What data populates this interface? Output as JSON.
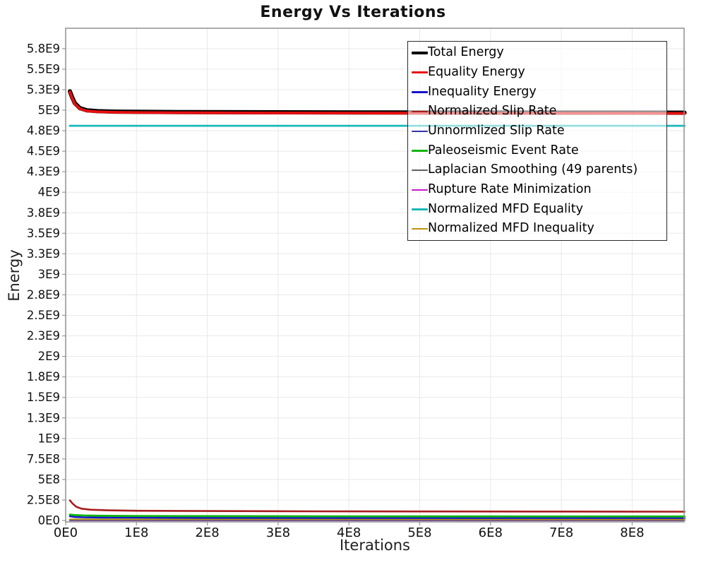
{
  "chart_data": {
    "type": "line",
    "title": "Energy Vs Iterations",
    "xlabel": "Iterations",
    "ylabel": "Energy",
    "xlim": [
      0,
      874000000.0
    ],
    "ylim": [
      0,
      6000000000.0
    ],
    "grid": true,
    "legend_position": "top-right-inside",
    "grid_color": "#e9e9e9",
    "border_color": "#909090",
    "tick_color": "#999999",
    "x_ticks": [
      {
        "value": 0,
        "label": "0E0"
      },
      {
        "value": 100000000.0,
        "label": "1E8"
      },
      {
        "value": 200000000.0,
        "label": "2E8"
      },
      {
        "value": 300000000.0,
        "label": "3E8"
      },
      {
        "value": 400000000.0,
        "label": "4E8"
      },
      {
        "value": 500000000.0,
        "label": "5E8"
      },
      {
        "value": 600000000.0,
        "label": "6E8"
      },
      {
        "value": 700000000.0,
        "label": "7E8"
      },
      {
        "value": 800000000.0,
        "label": "8E8"
      }
    ],
    "y_ticks": [
      {
        "value": 0,
        "label": "0E0"
      },
      {
        "value": 250000000.0,
        "label": "2.5E8"
      },
      {
        "value": 500000000.0,
        "label": "5E8"
      },
      {
        "value": 750000000.0,
        "label": "7.5E8"
      },
      {
        "value": 1000000000.0,
        "label": "1E9"
      },
      {
        "value": 1250000000.0,
        "label": "1.3E9"
      },
      {
        "value": 1500000000.0,
        "label": "1.5E9"
      },
      {
        "value": 1750000000.0,
        "label": "1.8E9"
      },
      {
        "value": 2000000000.0,
        "label": "2E9"
      },
      {
        "value": 2250000000.0,
        "label": "2.3E9"
      },
      {
        "value": 2500000000.0,
        "label": "2.5E9"
      },
      {
        "value": 2750000000.0,
        "label": "2.8E9"
      },
      {
        "value": 3000000000.0,
        "label": "3E9"
      },
      {
        "value": 3250000000.0,
        "label": "3.3E9"
      },
      {
        "value": 3500000000.0,
        "label": "3.5E9"
      },
      {
        "value": 3750000000.0,
        "label": "3.8E9"
      },
      {
        "value": 4000000000.0,
        "label": "4E9"
      },
      {
        "value": 4250000000.0,
        "label": "4.3E9"
      },
      {
        "value": 4500000000.0,
        "label": "4.5E9"
      },
      {
        "value": 4750000000.0,
        "label": "4.8E9"
      },
      {
        "value": 5000000000.0,
        "label": "5E9"
      },
      {
        "value": 5250000000.0,
        "label": "5.3E9"
      },
      {
        "value": 5500000000.0,
        "label": "5.5E9"
      },
      {
        "value": 5750000000.0,
        "label": "5.8E9"
      }
    ],
    "series": [
      {
        "name": "Total Energy",
        "color": "#000000",
        "width": 6,
        "points": [
          [
            6000000.0,
            5230000000.0
          ],
          [
            9000000.0,
            5160000000.0
          ],
          [
            13000000.0,
            5085000000.0
          ],
          [
            20000000.0,
            5025000000.0
          ],
          [
            30000000.0,
            4998000000.0
          ],
          [
            45000000.0,
            4988000000.0
          ],
          [
            70000000.0,
            4982000000.0
          ],
          [
            110000000.0,
            4979000000.0
          ],
          [
            180000000.0,
            4976000000.0
          ],
          [
            300000000.0,
            4974000000.0
          ],
          [
            450000000.0,
            4972000000.0
          ],
          [
            600000000.0,
            4971000000.0
          ],
          [
            750000000.0,
            4970000000.0
          ],
          [
            874000000.0,
            4969000000.0
          ]
        ]
      },
      {
        "name": "Equality Energy",
        "color": "#e81010",
        "width": 3.8,
        "points": [
          [
            6000000.0,
            5222000000.0
          ],
          [
            9000000.0,
            5152000000.0
          ],
          [
            13000000.0,
            5077000000.0
          ],
          [
            20000000.0,
            5017000000.0
          ],
          [
            30000000.0,
            4990000000.0
          ],
          [
            45000000.0,
            4980000000.0
          ],
          [
            70000000.0,
            4974000000.0
          ],
          [
            110000000.0,
            4971000000.0
          ],
          [
            180000000.0,
            4968000000.0
          ],
          [
            300000000.0,
            4966000000.0
          ],
          [
            450000000.0,
            4964000000.0
          ],
          [
            600000000.0,
            4963000000.0
          ],
          [
            750000000.0,
            4962000000.0
          ],
          [
            874000000.0,
            4961000000.0
          ]
        ]
      },
      {
        "name": "Inequality Energy",
        "color": "#1414cc",
        "width": 2.6,
        "points": [
          [
            6000000.0,
            52000000.0
          ],
          [
            12000000.0,
            44000000.0
          ],
          [
            25000000.0,
            39000000.0
          ],
          [
            50000000.0,
            36000000.0
          ],
          [
            100000000.0,
            34000000.0
          ],
          [
            200000000.0,
            32000000.0
          ],
          [
            400000000.0,
            31000000.0
          ],
          [
            600000000.0,
            30000000.0
          ],
          [
            874000000.0,
            30000000.0
          ]
        ]
      },
      {
        "name": "Normalized Slip Rate",
        "color": "#a81c1c",
        "width": 2.6,
        "points": [
          [
            6000000.0,
            245000000.0
          ],
          [
            10000000.0,
            205000000.0
          ],
          [
            15000000.0,
            168000000.0
          ],
          [
            22000000.0,
            145000000.0
          ],
          [
            35000000.0,
            132000000.0
          ],
          [
            60000000.0,
            124000000.0
          ],
          [
            100000000.0,
            119000000.0
          ],
          [
            200000000.0,
            115000000.0
          ],
          [
            350000000.0,
            112000000.0
          ],
          [
            500000000.0,
            110000000.0
          ],
          [
            700000000.0,
            109000000.0
          ],
          [
            874000000.0,
            108000000.0
          ]
        ]
      },
      {
        "name": "Unnormlized Slip Rate",
        "color": "#3434a8",
        "width": 2.2,
        "points": [
          [
            6000000.0,
            6000000.0
          ],
          [
            874000000.0,
            6000000.0
          ]
        ]
      },
      {
        "name": "Paleoseismic Event Rate",
        "color": "#10b410",
        "width": 2.8,
        "points": [
          [
            6000000.0,
            72000000.0
          ],
          [
            12000000.0,
            66000000.0
          ],
          [
            25000000.0,
            61000000.0
          ],
          [
            50000000.0,
            58000000.0
          ],
          [
            100000000.0,
            55000000.0
          ],
          [
            200000000.0,
            53000000.0
          ],
          [
            400000000.0,
            51000000.0
          ],
          [
            600000000.0,
            50000000.0
          ],
          [
            874000000.0,
            49000000.0
          ]
        ]
      },
      {
        "name": "Laplacian Smoothing (49 parents)",
        "color": "#606060",
        "width": 2.2,
        "points": [
          [
            6000000.0,
            4000000.0
          ],
          [
            874000000.0,
            4000000.0
          ]
        ]
      },
      {
        "name": "Rupture Rate Minimization",
        "color": "#c817c8",
        "width": 2.2,
        "points": [
          [
            6000000.0,
            2000000.0
          ],
          [
            874000000.0,
            2000000.0
          ]
        ]
      },
      {
        "name": "Normalized MFD Equality",
        "color": "#17b8b8",
        "width": 2.8,
        "points": [
          [
            6000000.0,
            4810000000.0
          ],
          [
            874000000.0,
            4810000000.0
          ]
        ]
      },
      {
        "name": "Normalized MFD Inequality",
        "color": "#b89410",
        "width": 2.2,
        "points": [
          [
            6000000.0,
            14000000.0
          ],
          [
            874000000.0,
            13000000.0
          ]
        ]
      }
    ],
    "draw_order": [
      7,
      6,
      4,
      9,
      2,
      5,
      3,
      8,
      0,
      1
    ]
  }
}
